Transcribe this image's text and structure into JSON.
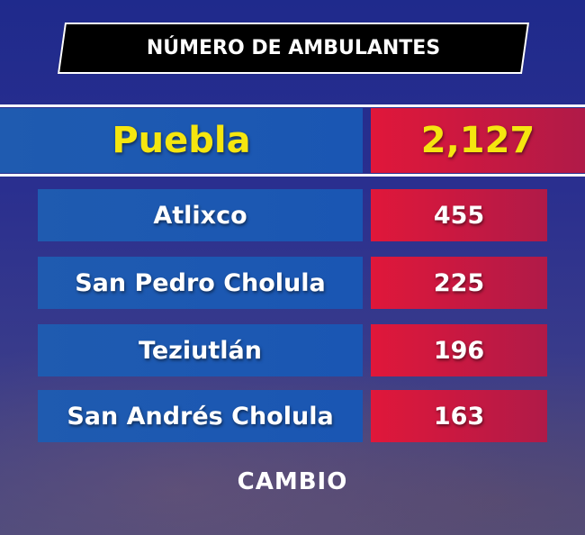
{
  "header": {
    "title": "NÚMERO DE AMBULANTES"
  },
  "table": {
    "rows": [
      [
        "Puebla",
        "2,127"
      ],
      [
        "Atlixco",
        "455"
      ],
      [
        "San Pedro Cholula",
        "225"
      ],
      [
        "Teziutlán",
        "196"
      ],
      [
        "San Andrés Cholula",
        "163"
      ]
    ]
  },
  "footer": {
    "brand": "CAMBIO"
  }
}
